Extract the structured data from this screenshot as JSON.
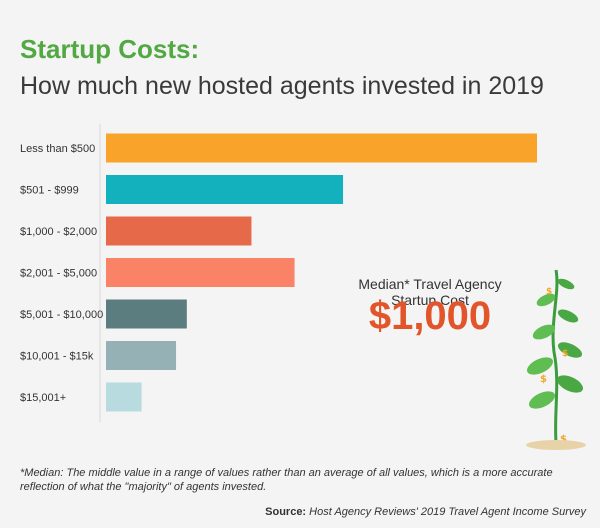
{
  "header": {
    "title": "Startup Costs:",
    "subtitle": "How much new hosted agents invested in 2019"
  },
  "callout": {
    "label": "Median* Travel Agency Startup Cost",
    "value": "$1,000"
  },
  "footnote": "*Median: The middle value in a range of values rather than an average of all values, which is a more accurate reflection of what the \"majority\" of agents invested.",
  "source": {
    "label": "Source:",
    "text": "Host Agency Reviews' 2019 Travel Agent Income Survey"
  },
  "icons": {
    "plant": "money-plant-icon"
  },
  "chart_data": {
    "type": "bar",
    "orientation": "horizontal",
    "title": "Startup Costs:",
    "subtitle": "How much new hosted agents invested in 2019",
    "categories": [
      "Less than $500",
      "$501 - $999",
      "$1,000 - $2,000",
      "$2,001 - $5,000",
      "$5,001 - $10,000",
      "$10,001 - $15k",
      "$15,001+"
    ],
    "values": [
      40,
      22,
      13.5,
      17.5,
      7.5,
      6.5,
      3.3
    ],
    "colors": [
      "#f9a32a",
      "#13b1bd",
      "#e6694a",
      "#fa8266",
      "#5b7d7f",
      "#96b1b5",
      "#b8dbe0"
    ],
    "xlim": [
      0,
      40
    ],
    "grid": false,
    "legend": "none"
  }
}
